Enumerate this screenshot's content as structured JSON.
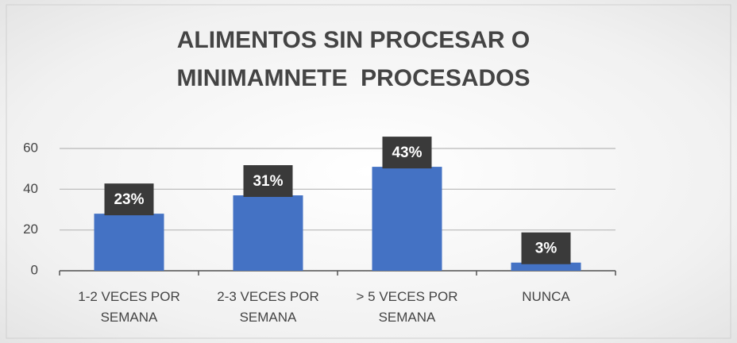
{
  "chart_data": {
    "type": "bar",
    "title": [
      "ALIMENTOS SIN PROCESAR O",
      "MINIMAMNETE  PROCESADOS"
    ],
    "categories": [
      "1-2 VECES POR SEMANA",
      "2-3 VECES POR SEMANA",
      "> 5 VECES POR SEMANA",
      "NUNCA"
    ],
    "values": [
      28,
      37,
      51,
      4
    ],
    "value_labels": [
      "23%",
      "31%",
      "43%",
      "3%"
    ],
    "color": "#4472c4",
    "ylim": [
      0,
      60
    ],
    "yticks": [
      0,
      20,
      40,
      60
    ],
    "grid": true
  }
}
